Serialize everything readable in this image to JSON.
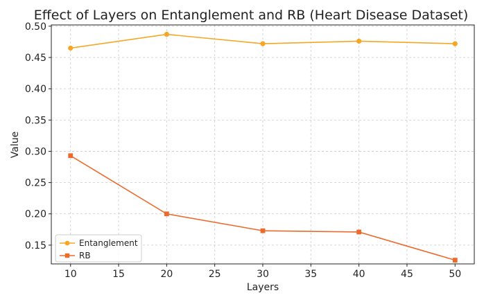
{
  "chart_data": {
    "type": "line",
    "title": "Effect of Layers on Entanglement and RB (Heart Disease Dataset)",
    "xlabel": "Layers",
    "ylabel": "Value",
    "x": [
      10,
      20,
      30,
      40,
      50
    ],
    "xlim": [
      8,
      52
    ],
    "ylim": [
      0.12,
      0.502
    ],
    "xticks": [
      10,
      15,
      20,
      25,
      30,
      35,
      40,
      45,
      50
    ],
    "yticks": [
      0.15,
      0.2,
      0.25,
      0.3,
      0.35,
      0.4,
      0.45,
      0.5
    ],
    "grid": true,
    "legend_position": "lower-left",
    "series": [
      {
        "name": "Entanglement",
        "values": [
          0.465,
          0.487,
          0.472,
          0.476,
          0.472
        ],
        "color": "#f5a623",
        "marker": "circle"
      },
      {
        "name": "RB",
        "values": [
          0.293,
          0.2,
          0.173,
          0.171,
          0.126
        ],
        "color": "#ec6a2c",
        "marker": "square"
      }
    ]
  }
}
